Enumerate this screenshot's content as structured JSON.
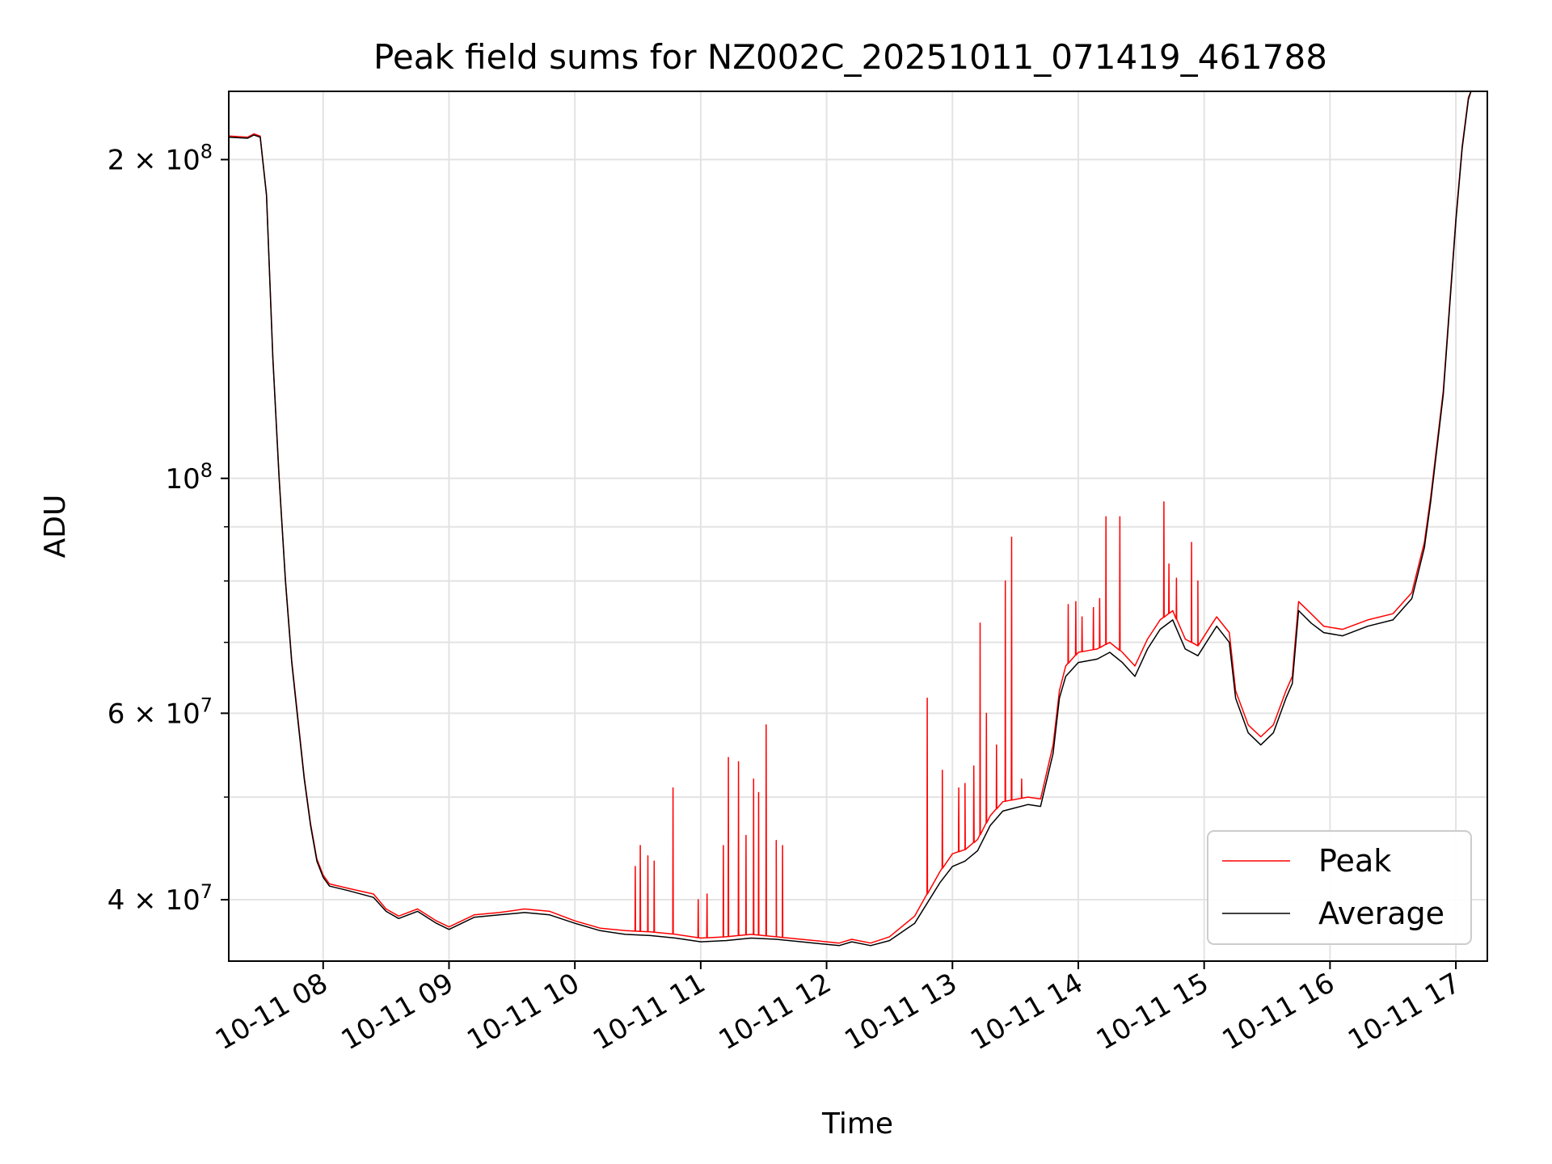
{
  "chart_data": {
    "type": "line",
    "title": "Peak field sums for NZ002C_20251011_071419_461788",
    "xlabel": "Time",
    "ylabel": "ADU",
    "yscale": "log",
    "grid": true,
    "xlim_hours": [
      7.25,
      17.25
    ],
    "ylim": [
      35000000,
      232000000
    ],
    "x_tick_values_hours": [
      8,
      9,
      10,
      11,
      12,
      13,
      14,
      15,
      16,
      17
    ],
    "x_tick_labels": [
      "10-11 08",
      "10-11 09",
      "10-11 10",
      "10-11 11",
      "10-11 12",
      "10-11 13",
      "10-11 14",
      "10-11 15",
      "10-11 16",
      "10-11 17"
    ],
    "y_major_ticks": [
      {
        "value": 40000000,
        "mantissa": "4",
        "exp": "7",
        "type": "sci"
      },
      {
        "value": 60000000,
        "mantissa": "6",
        "exp": "7",
        "type": "sci"
      },
      {
        "value": 100000000,
        "exp": "8",
        "type": "pow"
      },
      {
        "value": 200000000,
        "mantissa": "2",
        "exp": "8",
        "type": "sci"
      }
    ],
    "y_minor_ticks": [
      50000000,
      70000000,
      80000000,
      90000000
    ],
    "legend_position": "lower-right",
    "legend": [
      {
        "label": "Peak",
        "color": "#ff0000"
      },
      {
        "label": "Average",
        "color": "#000000"
      }
    ],
    "series": [
      {
        "name": "Average",
        "color": "#000000",
        "points": [
          [
            7.25,
            210000000
          ],
          [
            7.4,
            209500000
          ],
          [
            7.45,
            211000000
          ],
          [
            7.5,
            210000000
          ],
          [
            7.55,
            185000000
          ],
          [
            7.6,
            130000000
          ],
          [
            7.65,
            100000000
          ],
          [
            7.7,
            80000000
          ],
          [
            7.75,
            67000000
          ],
          [
            7.8,
            59000000
          ],
          [
            7.85,
            52000000
          ],
          [
            7.9,
            47000000
          ],
          [
            7.95,
            43500000
          ],
          [
            8.0,
            42000000
          ],
          [
            8.05,
            41200000
          ],
          [
            8.2,
            40800000
          ],
          [
            8.4,
            40200000
          ],
          [
            8.5,
            39000000
          ],
          [
            8.6,
            38400000
          ],
          [
            8.75,
            39000000
          ],
          [
            8.9,
            38000000
          ],
          [
            9.0,
            37500000
          ],
          [
            9.2,
            38500000
          ],
          [
            9.4,
            38700000
          ],
          [
            9.6,
            38900000
          ],
          [
            9.8,
            38700000
          ],
          [
            10.0,
            38000000
          ],
          [
            10.2,
            37400000
          ],
          [
            10.4,
            37100000
          ],
          [
            10.6,
            37000000
          ],
          [
            10.8,
            36800000
          ],
          [
            11.0,
            36500000
          ],
          [
            11.2,
            36600000
          ],
          [
            11.4,
            36800000
          ],
          [
            11.6,
            36700000
          ],
          [
            11.8,
            36500000
          ],
          [
            12.0,
            36300000
          ],
          [
            12.1,
            36200000
          ],
          [
            12.2,
            36500000
          ],
          [
            12.35,
            36200000
          ],
          [
            12.5,
            36600000
          ],
          [
            12.7,
            38000000
          ],
          [
            12.9,
            41500000
          ],
          [
            13.0,
            43000000
          ],
          [
            13.1,
            43500000
          ],
          [
            13.2,
            44500000
          ],
          [
            13.3,
            47000000
          ],
          [
            13.4,
            48500000
          ],
          [
            13.6,
            49200000
          ],
          [
            13.7,
            49000000
          ],
          [
            13.8,
            55000000
          ],
          [
            13.85,
            62000000
          ],
          [
            13.9,
            65000000
          ],
          [
            14.0,
            67000000
          ],
          [
            14.15,
            67500000
          ],
          [
            14.25,
            68500000
          ],
          [
            14.35,
            67000000
          ],
          [
            14.45,
            65000000
          ],
          [
            14.55,
            69000000
          ],
          [
            14.65,
            72000000
          ],
          [
            14.75,
            73500000
          ],
          [
            14.85,
            69000000
          ],
          [
            14.95,
            68000000
          ],
          [
            15.05,
            71000000
          ],
          [
            15.1,
            72500000
          ],
          [
            15.2,
            70000000
          ],
          [
            15.25,
            62000000
          ],
          [
            15.35,
            57500000
          ],
          [
            15.45,
            56000000
          ],
          [
            15.55,
            57500000
          ],
          [
            15.65,
            62000000
          ],
          [
            15.7,
            64000000
          ],
          [
            15.75,
            75000000
          ],
          [
            15.85,
            73000000
          ],
          [
            15.95,
            71500000
          ],
          [
            16.1,
            71000000
          ],
          [
            16.3,
            72500000
          ],
          [
            16.5,
            73500000
          ],
          [
            16.65,
            77000000
          ],
          [
            16.75,
            86000000
          ],
          [
            16.8,
            95000000
          ],
          [
            16.9,
            120000000
          ],
          [
            17.0,
            175000000
          ],
          [
            17.05,
            205000000
          ],
          [
            17.1,
            228000000
          ],
          [
            17.12,
            232000000
          ]
        ]
      },
      {
        "name": "Peak",
        "color": "#ff0000",
        "points": [
          [
            7.25,
            210500000
          ],
          [
            7.4,
            210000000
          ],
          [
            7.45,
            211500000
          ],
          [
            7.5,
            210500000
          ],
          [
            7.55,
            185500000
          ],
          [
            7.6,
            130500000
          ],
          [
            7.65,
            100300000
          ],
          [
            7.7,
            80300000
          ],
          [
            7.75,
            67300000
          ],
          [
            7.8,
            59300000
          ],
          [
            7.85,
            52200000
          ],
          [
            7.9,
            47200000
          ],
          [
            7.95,
            43700000
          ],
          [
            8.0,
            42200000
          ],
          [
            8.05,
            41400000
          ],
          [
            8.2,
            41000000
          ],
          [
            8.4,
            40500000
          ],
          [
            8.5,
            39200000
          ],
          [
            8.6,
            38600000
          ],
          [
            8.75,
            39200000
          ],
          [
            8.9,
            38200000
          ],
          [
            9.0,
            37700000
          ],
          [
            9.2,
            38700000
          ],
          [
            9.4,
            38900000
          ],
          [
            9.6,
            39200000
          ],
          [
            9.8,
            39000000
          ],
          [
            10.0,
            38200000
          ],
          [
            10.2,
            37600000
          ],
          [
            10.4,
            37400000
          ],
          [
            10.6,
            37300000
          ],
          [
            10.8,
            37100000
          ],
          [
            11.0,
            36800000
          ],
          [
            11.2,
            36900000
          ],
          [
            11.4,
            37100000
          ],
          [
            11.6,
            36900000
          ],
          [
            11.8,
            36700000
          ],
          [
            12.0,
            36500000
          ],
          [
            12.1,
            36400000
          ],
          [
            12.2,
            36700000
          ],
          [
            12.35,
            36400000
          ],
          [
            12.5,
            36900000
          ],
          [
            12.7,
            38600000
          ],
          [
            12.9,
            42500000
          ],
          [
            13.0,
            44200000
          ],
          [
            13.1,
            44600000
          ],
          [
            13.2,
            45600000
          ],
          [
            13.3,
            48000000
          ],
          [
            13.4,
            49500000
          ],
          [
            13.6,
            50000000
          ],
          [
            13.7,
            49800000
          ],
          [
            13.8,
            56000000
          ],
          [
            13.85,
            63000000
          ],
          [
            13.9,
            66500000
          ],
          [
            14.0,
            68500000
          ],
          [
            14.15,
            69000000
          ],
          [
            14.25,
            70000000
          ],
          [
            14.35,
            68500000
          ],
          [
            14.45,
            66500000
          ],
          [
            14.55,
            70500000
          ],
          [
            14.65,
            73500000
          ],
          [
            14.75,
            75000000
          ],
          [
            14.85,
            70500000
          ],
          [
            14.95,
            69500000
          ],
          [
            15.05,
            72500000
          ],
          [
            15.1,
            74000000
          ],
          [
            15.2,
            71500000
          ],
          [
            15.25,
            63000000
          ],
          [
            15.35,
            58500000
          ],
          [
            15.45,
            57000000
          ],
          [
            15.55,
            58500000
          ],
          [
            15.65,
            63000000
          ],
          [
            15.7,
            65000000
          ],
          [
            15.75,
            76500000
          ],
          [
            15.85,
            74500000
          ],
          [
            15.95,
            72500000
          ],
          [
            16.1,
            72000000
          ],
          [
            16.3,
            73500000
          ],
          [
            16.5,
            74500000
          ],
          [
            16.65,
            78000000
          ],
          [
            16.75,
            87000000
          ],
          [
            16.8,
            96000000
          ],
          [
            16.9,
            121000000
          ],
          [
            17.0,
            176000000
          ],
          [
            17.05,
            206000000
          ],
          [
            17.1,
            229000000
          ],
          [
            17.12,
            232000000
          ]
        ],
        "spikes": [
          [
            10.48,
            43000000
          ],
          [
            10.52,
            45000000
          ],
          [
            10.58,
            44000000
          ],
          [
            10.63,
            43500000
          ],
          [
            10.78,
            51000000
          ],
          [
            10.98,
            40000000
          ],
          [
            11.05,
            40500000
          ],
          [
            11.18,
            45000000
          ],
          [
            11.22,
            54500000
          ],
          [
            11.3,
            54000000
          ],
          [
            11.36,
            46000000
          ],
          [
            11.42,
            52000000
          ],
          [
            11.46,
            50500000
          ],
          [
            11.52,
            58500000
          ],
          [
            11.6,
            45500000
          ],
          [
            11.65,
            45000000
          ],
          [
            12.8,
            62000000
          ],
          [
            12.92,
            53000000
          ],
          [
            13.05,
            51000000
          ],
          [
            13.1,
            51500000
          ],
          [
            13.17,
            53500000
          ],
          [
            13.22,
            73000000
          ],
          [
            13.27,
            60000000
          ],
          [
            13.35,
            56000000
          ],
          [
            13.42,
            80000000
          ],
          [
            13.47,
            88000000
          ],
          [
            13.55,
            52000000
          ],
          [
            13.92,
            76000000
          ],
          [
            13.98,
            76500000
          ],
          [
            14.03,
            74000000
          ],
          [
            14.12,
            75500000
          ],
          [
            14.17,
            77000000
          ],
          [
            14.22,
            92000000
          ],
          [
            14.33,
            92000000
          ],
          [
            14.68,
            95000000
          ],
          [
            14.72,
            83000000
          ],
          [
            14.78,
            80500000
          ],
          [
            14.9,
            87000000
          ],
          [
            14.95,
            80000000
          ]
        ]
      }
    ]
  }
}
